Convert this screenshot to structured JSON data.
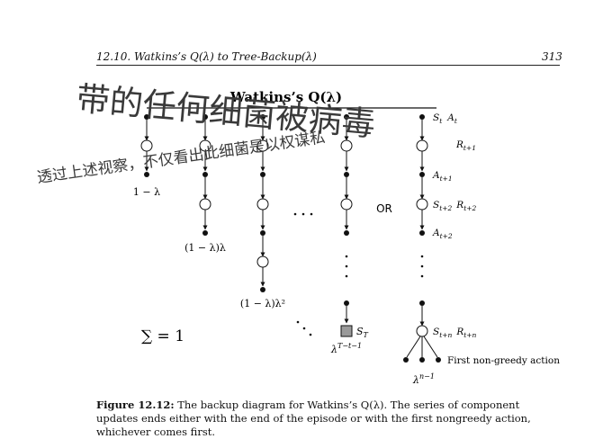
{
  "header": {
    "section": "12.10.   Watkins’s Q(λ) to Tree-Backup(λ)",
    "page_number": "313"
  },
  "diagram": {
    "title": "Watkins’s Q(λ)",
    "weights": {
      "w1": "1 − λ",
      "w2": "(1 − λ)λ",
      "w3": "(1 − λ)λ²",
      "w4": "λ",
      "w4_exp": "T−t−1",
      "w5": "λ",
      "w5_exp": "n−1"
    },
    "sum_label": "∑ = 1",
    "or_label": "OR",
    "state_labels": {
      "s_t": "S",
      "s_t_sub": "t",
      "a_t": "A",
      "a_t_sub": "t",
      "r_t1": "R",
      "r_t1_sub": "t+1",
      "a_t1": "A",
      "a_t1_sub": "t+1",
      "s_t2": "S",
      "s_t2_sub": "t+2",
      "r_t2": "R",
      "r_t2_sub": "t+2",
      "a_t2": "A",
      "a_t2_sub": "t+2",
      "s_tn": "S",
      "s_tn_sub": "t+n",
      "r_tn": "R",
      "r_tn_sub": "t+n",
      "s_T": "S",
      "s_T_sub": "T"
    },
    "first_non_greedy": "First non-greedy action"
  },
  "caption": {
    "label": "Figure 12.12:",
    "text": " The backup diagram for Watkins’s Q(λ). The series of component updates ends either with the end of the episode or with the first nongreedy action, whichever comes first."
  },
  "handwriting": {
    "line1": "带的任何细菌被病毒",
    "line2": "透过上述视察，不仅看出此细菌是以权谋私",
    "colors": {
      "ink": "#3a3a3a"
    }
  }
}
